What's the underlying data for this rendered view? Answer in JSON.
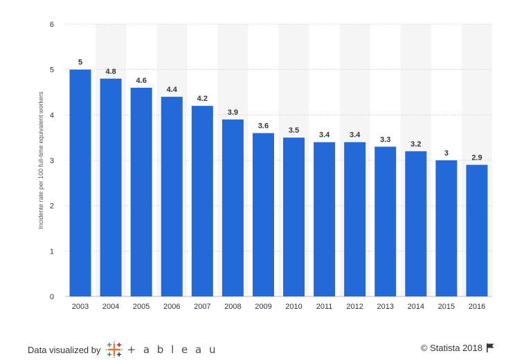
{
  "chart_data": {
    "type": "bar",
    "ylabel": "Incidente rate per 100 full-time equivalent workers",
    "xlabel": "",
    "title": "",
    "categories": [
      "2003",
      "2004",
      "2005",
      "2006",
      "2007",
      "2008",
      "2009",
      "2010",
      "2011",
      "2012",
      "2013",
      "2014",
      "2015",
      "2016"
    ],
    "values": [
      5,
      4.8,
      4.6,
      4.4,
      4.2,
      3.9,
      3.6,
      3.5,
      3.4,
      3.4,
      3.3,
      3.2,
      3,
      2.9
    ],
    "value_labels": [
      "5",
      "4.8",
      "4.6",
      "4.4",
      "4.2",
      "3.9",
      "3.6",
      "3.5",
      "3.4",
      "3.4",
      "3.3",
      "3.2",
      "3",
      "2.9"
    ],
    "ylim": [
      0,
      6
    ],
    "yticks": [
      "0",
      "1",
      "2",
      "3",
      "4",
      "5",
      "6"
    ],
    "grid": true,
    "legend": "none",
    "bar_color": "#2469d8",
    "band_color": "#f5f5f5"
  },
  "footer": {
    "left_label": "Data visualized by",
    "tableau_word": "+ a b l e a u",
    "credit": "© Statista 2018"
  },
  "icons": {
    "tableau": "tableau-logo-icon",
    "flag": "flag-icon"
  }
}
